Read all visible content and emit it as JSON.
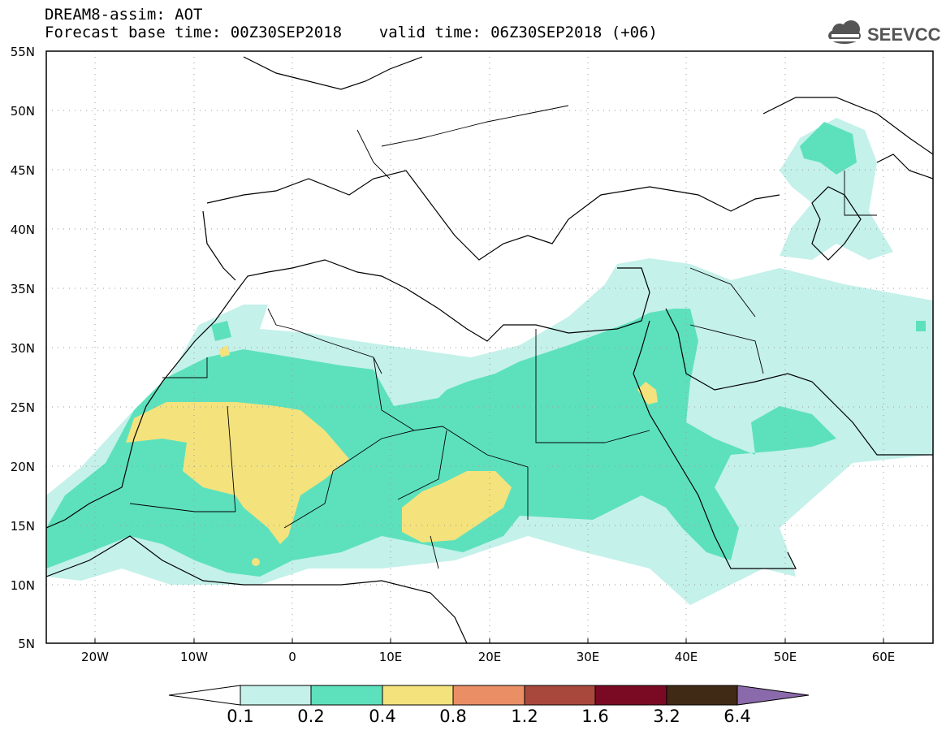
{
  "title": {
    "line1": "DREAM8-assim: AOT",
    "line2": "Forecast base time: 00Z30SEP2018    valid time: 06Z30SEP2018 (+06)"
  },
  "logo": {
    "text": "SEEVCCC",
    "icon": "cloud-icon"
  },
  "map": {
    "projection": "lat-lon",
    "lon_range": [
      -25,
      65
    ],
    "lat_range": [
      5,
      55
    ],
    "lat_ticks": [
      "55N",
      "50N",
      "45N",
      "40N",
      "35N",
      "30N",
      "25N",
      "20N",
      "15N",
      "10N",
      "5N"
    ],
    "lat_values": [
      55,
      50,
      45,
      40,
      35,
      30,
      25,
      20,
      15,
      10,
      5
    ],
    "lon_ticks": [
      "20W",
      "10W",
      "0",
      "10E",
      "20E",
      "30E",
      "40E",
      "50E",
      "60E"
    ],
    "lon_values": [
      -20,
      -10,
      0,
      10,
      20,
      30,
      40,
      50,
      60
    ],
    "grid": true
  },
  "colorbar": {
    "labels": [
      "0.1",
      "0.2",
      "0.4",
      "0.8",
      "1.2",
      "1.6",
      "3.2",
      "6.4"
    ],
    "colors": [
      "#ffffff",
      "#c4f1ea",
      "#5de1bc",
      "#f4e27d",
      "#ea8e66",
      "#a8483c",
      "#7a0a23",
      "#402a16",
      "#8a6aaa"
    ]
  }
}
